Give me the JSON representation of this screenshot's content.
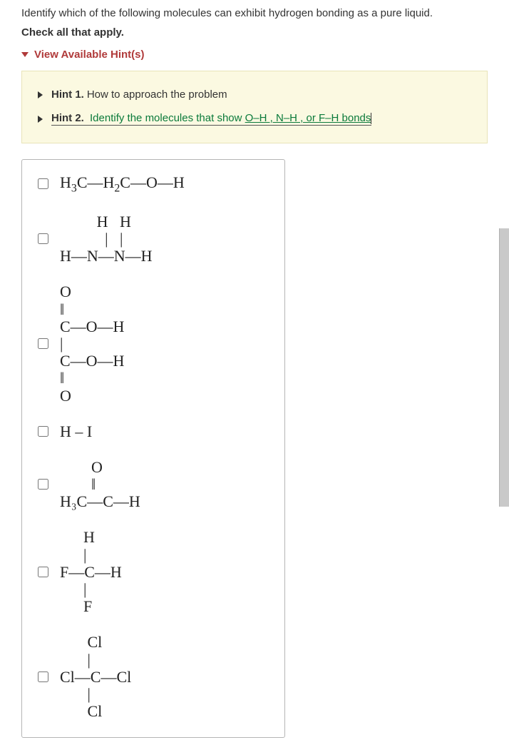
{
  "question": {
    "prompt": "Identify which of the following molecules can exhibit hydrogen bonding as a pure liquid.",
    "instruction": "Check all that apply."
  },
  "hints": {
    "toggle_label": "View Available Hint(s)",
    "hint1_label": "Hint 1.",
    "hint1_text": "How to approach the problem",
    "hint2_label": "Hint 2.",
    "hint2_prefix": "Identify the molecules that show ",
    "hint2_bonds": "O–H , N–H , or F–H bonds"
  },
  "options": {
    "opt1_html": "H<span class='sub'>3</span>C—H<span class='sub'>2</span>C—O—H",
    "opt2_struct": "    H   H\n    |   |\nH—N—N—H",
    "opt3_struct": "O\n‖\nC—O—H\n|\nC—O—H\n‖\nO",
    "opt4_text": "H – I",
    "opt5_struct": "        O\n        ‖\nH₃C—C—H",
    "opt6_struct": "      H\n      |\nF—C—H\n      |\n      F",
    "opt7_struct": "       Cl\n       |\nCl—C—Cl\n       |\n       Cl"
  },
  "styles": {
    "hint_bg": "#fbf9e1",
    "accent": "#b03a3a",
    "hint_green": "#0a7a3a",
    "box_border": "#b5b5b5"
  }
}
